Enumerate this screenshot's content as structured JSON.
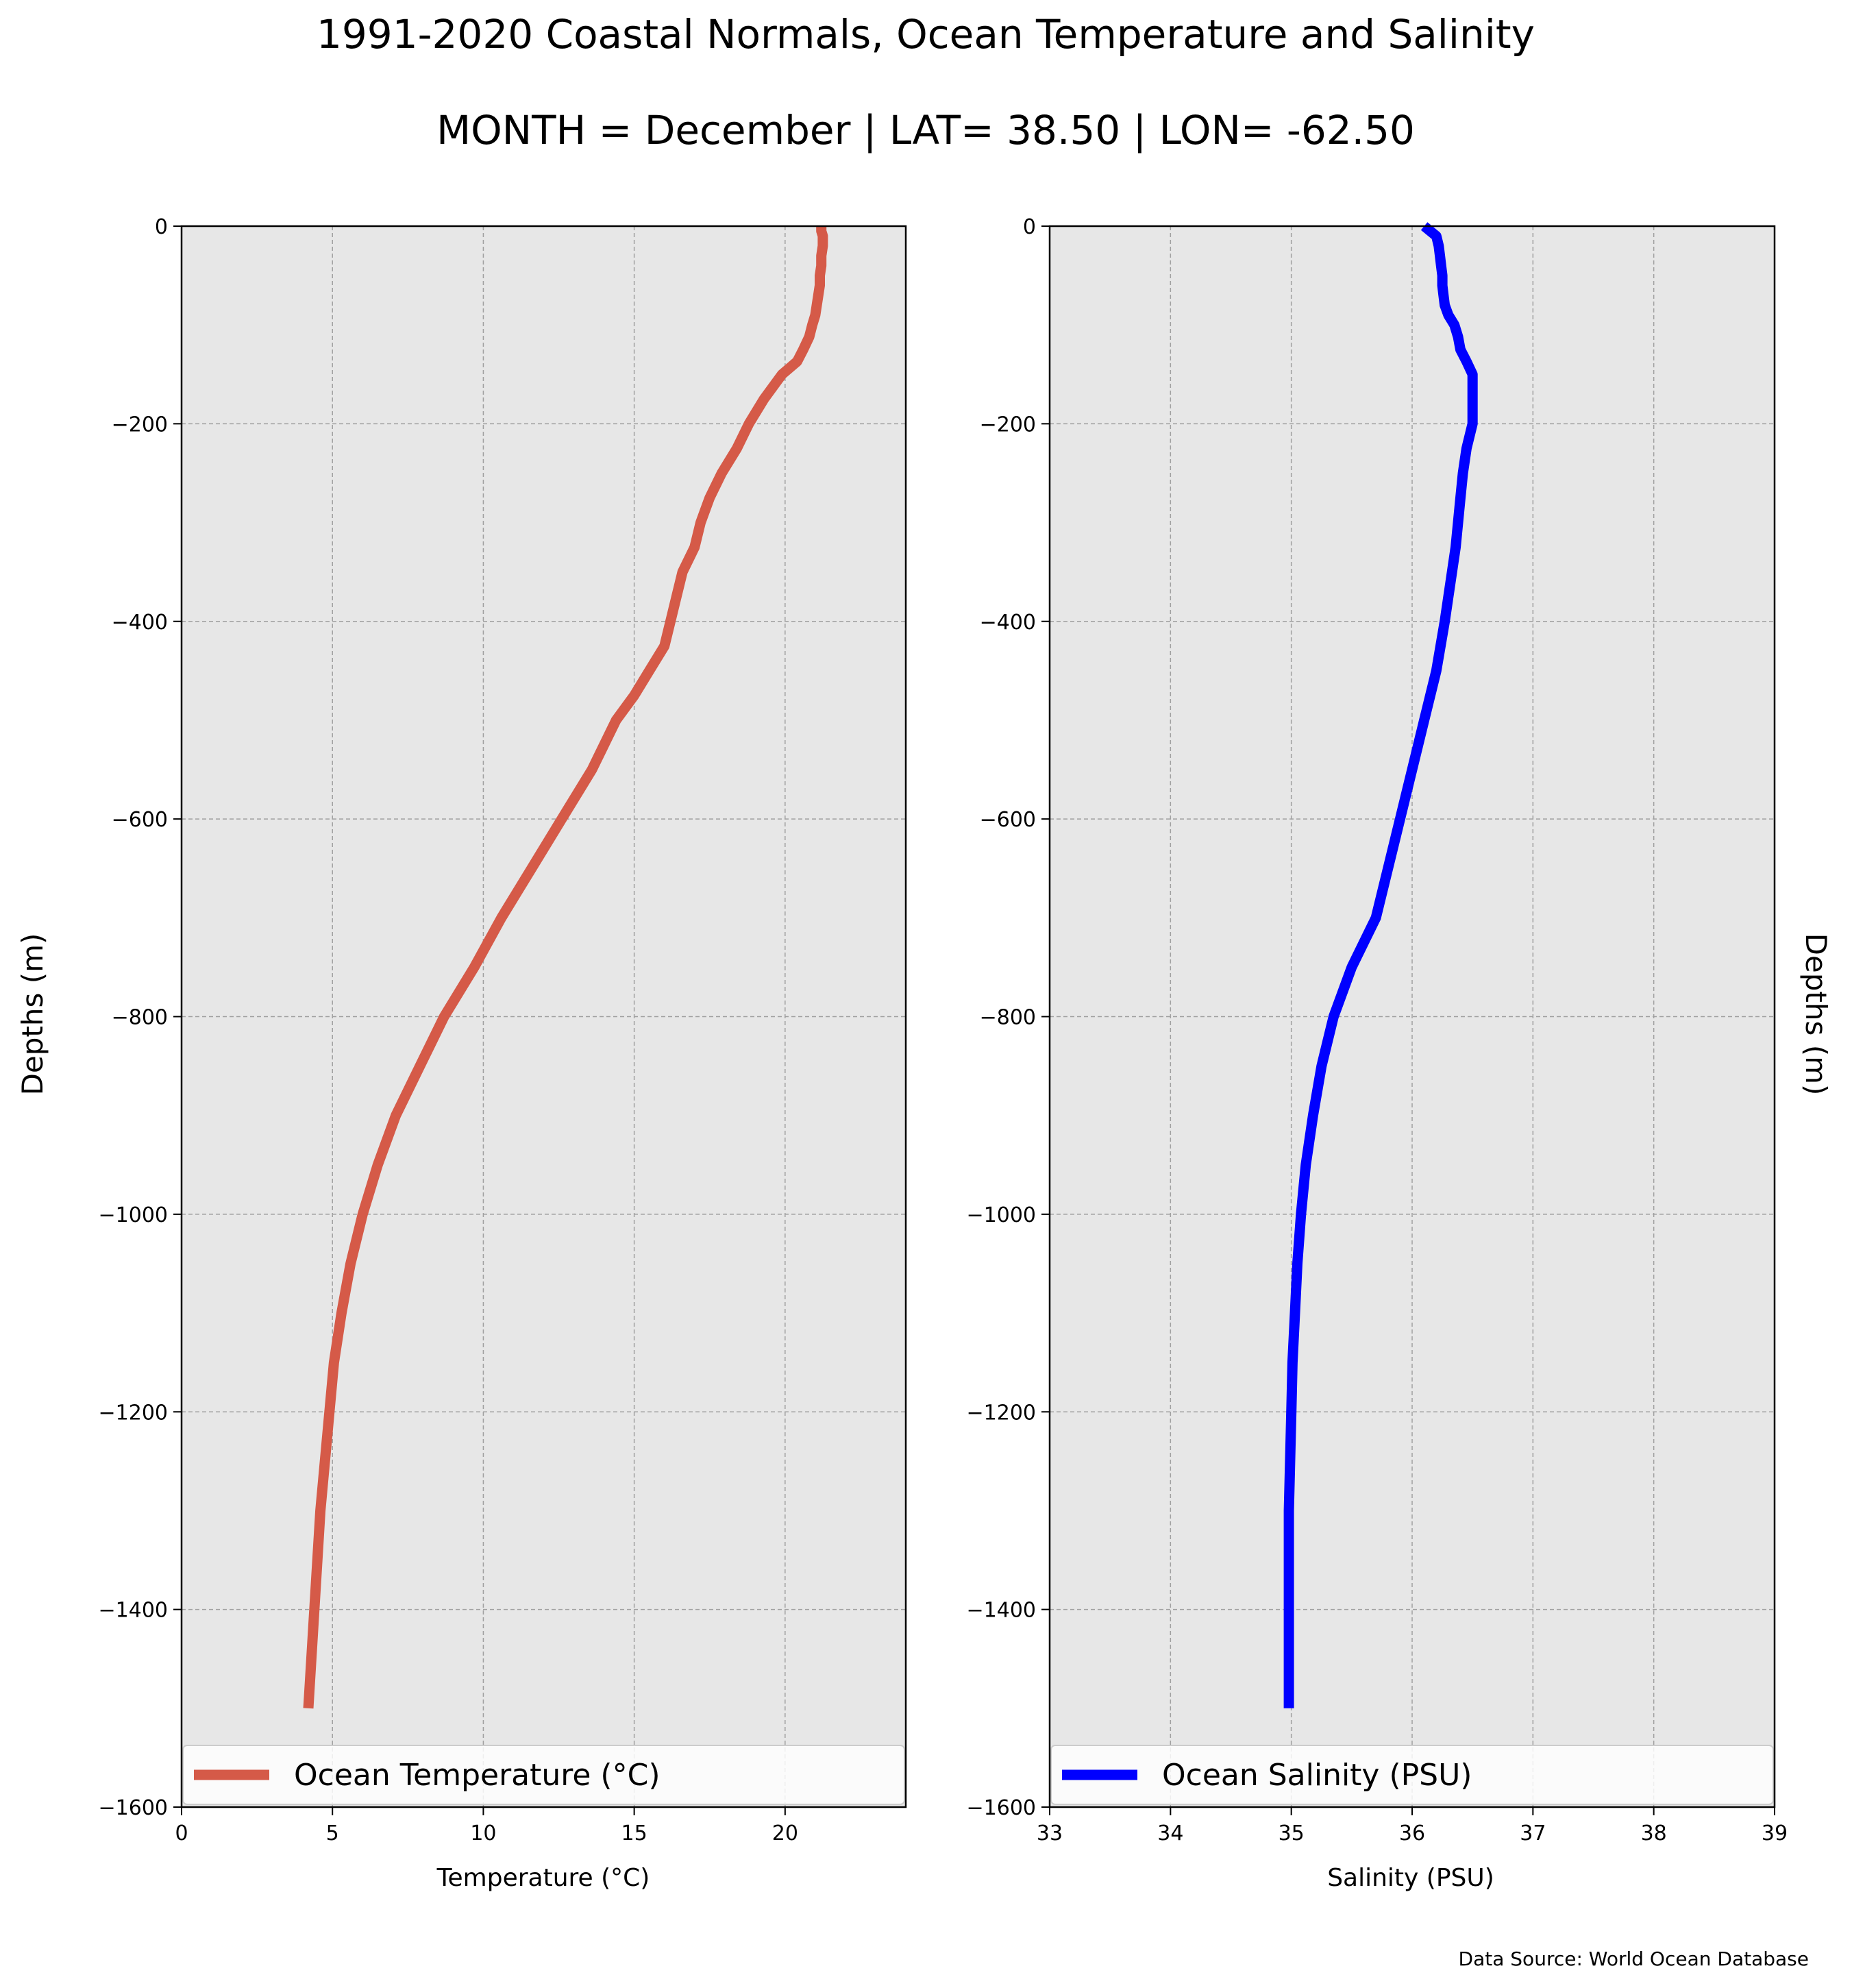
{
  "figure": {
    "title": "1991-2020 Coastal Normals, Ocean Temperature and Salinity",
    "subtitle": "MONTH = December | LAT= 38.50 | LON= -62.50",
    "source": "Data Source: World Ocean Database"
  },
  "colors": {
    "panel_background": "#e7e7e7",
    "grid": "#a0a0a0",
    "temperature_line": "#d55a48",
    "salinity_line": "#0000ff"
  },
  "chart_data": [
    {
      "type": "line",
      "xlabel": "Temperature ($^\\circ$C)",
      "xlabel_display": "Temperature (°C)",
      "ylabel": "Depths (m)",
      "xlim": [
        0,
        24
      ],
      "ylim": [
        -1600,
        0
      ],
      "xticks": [
        0,
        5,
        10,
        15,
        20
      ],
      "yticks": [
        0,
        -200,
        -400,
        -600,
        -800,
        -1000,
        -1200,
        -1400,
        -1600
      ],
      "ytick_labels": [
        "0",
        "−200",
        "−400",
        "−600",
        "−800",
        "−1000",
        "−1200",
        "−1400",
        "−1600"
      ],
      "grid": true,
      "legend_placement": "bottom",
      "series": [
        {
          "name": "Ocean Temperature (°C)",
          "color": "#d55a48",
          "x": [
            21.2,
            21.2,
            21.25,
            21.25,
            21.2,
            21.2,
            21.15,
            21.15,
            21.1,
            21.05,
            21.0,
            20.9,
            20.8,
            20.6,
            20.4,
            19.9,
            19.3,
            18.8,
            18.4,
            17.9,
            17.5,
            17.2,
            17.0,
            16.6,
            16.4,
            16.2,
            16.0,
            15.5,
            15.0,
            14.4,
            13.6,
            12.6,
            11.6,
            10.6,
            9.7,
            8.7,
            7.9,
            7.1,
            6.5,
            6.0,
            5.6,
            5.3,
            5.05,
            4.9,
            4.75,
            4.6,
            4.5,
            4.4,
            4.35,
            4.3,
            4.25,
            4.2
          ],
          "y": [
            0,
            -5,
            -10,
            -20,
            -30,
            -40,
            -50,
            -60,
            -70,
            -80,
            -90,
            -100,
            -112,
            -125,
            -137,
            -150,
            -175,
            -200,
            -225,
            -250,
            -275,
            -300,
            -325,
            -350,
            -375,
            -400,
            -425,
            -450,
            -475,
            -500,
            -550,
            -600,
            -650,
            -700,
            -750,
            -800,
            -850,
            -900,
            -950,
            -1000,
            -1050,
            -1100,
            -1150,
            -1200,
            -1250,
            -1300,
            -1350,
            -1400,
            -1425,
            -1450,
            -1475,
            -1500
          ]
        }
      ]
    },
    {
      "type": "line",
      "xlabel": "Salinity (PSU)",
      "ylabel": "Depths (m)",
      "xlim": [
        33,
        39
      ],
      "ylim": [
        -1600,
        0
      ],
      "xticks": [
        33,
        34,
        35,
        36,
        37,
        38,
        39
      ],
      "yticks": [
        0,
        -200,
        -400,
        -600,
        -800,
        -1000,
        -1200,
        -1400,
        -1600
      ],
      "ytick_labels": [
        "0",
        "−200",
        "−400",
        "−600",
        "−800",
        "−1000",
        "−1200",
        "−1400",
        "−1600"
      ],
      "grid": true,
      "legend_placement": "bottom",
      "series": [
        {
          "name": "Ocean Salinity (PSU)",
          "color": "#0000ff",
          "x": [
            36.1,
            36.15,
            36.2,
            36.22,
            36.23,
            36.24,
            36.25,
            36.25,
            36.26,
            36.27,
            36.3,
            36.35,
            36.38,
            36.4,
            36.45,
            36.5,
            36.5,
            36.5,
            36.45,
            36.42,
            36.4,
            36.38,
            36.36,
            36.33,
            36.3,
            36.27,
            36.2,
            36.1,
            35.9,
            35.7,
            35.5,
            35.35,
            35.25,
            35.18,
            35.12,
            35.08,
            35.05,
            35.03,
            35.01,
            35.0,
            34.99,
            34.98,
            34.98,
            34.98,
            34.98
          ],
          "y": [
            0,
            -5,
            -10,
            -20,
            -30,
            -40,
            -50,
            -60,
            -70,
            -80,
            -90,
            -100,
            -112,
            -125,
            -137,
            -150,
            -175,
            -200,
            -225,
            -250,
            -275,
            -300,
            -325,
            -350,
            -375,
            -400,
            -450,
            -500,
            -600,
            -700,
            -750,
            -800,
            -850,
            -900,
            -950,
            -1000,
            -1050,
            -1100,
            -1150,
            -1200,
            -1250,
            -1300,
            -1400,
            -1450,
            -1500
          ]
        }
      ]
    }
  ]
}
